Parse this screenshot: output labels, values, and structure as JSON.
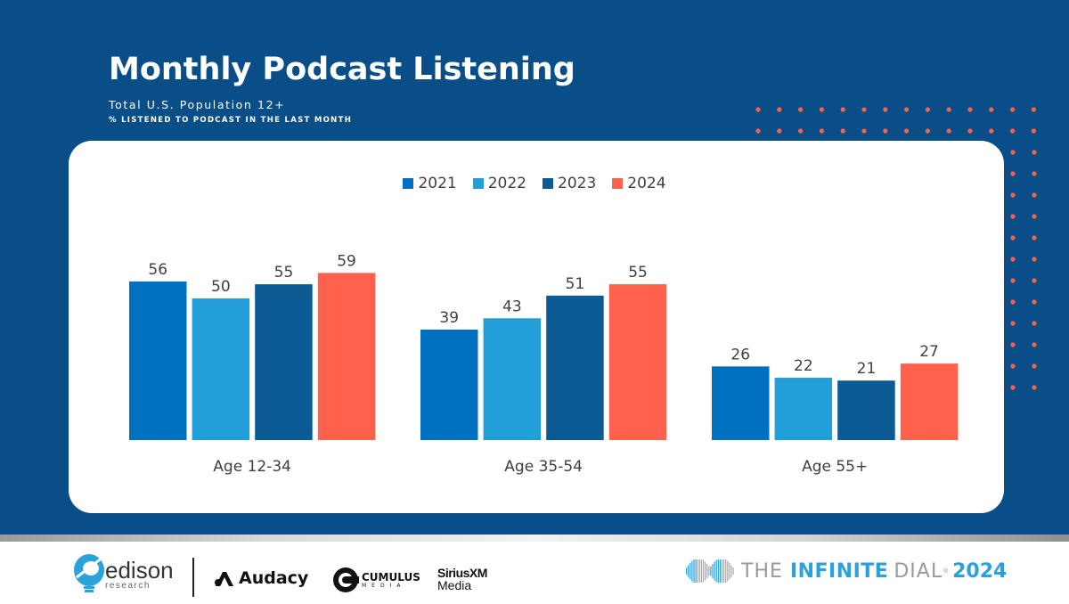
{
  "header": {
    "title": "Monthly Podcast Listening",
    "subtitle": "Total U.S. Population 12+",
    "measure": "% LISTENED TO PODCAST IN THE LAST MONTH"
  },
  "colors": {
    "background": "#0a4e88",
    "accent_dots": "#ff614c",
    "series": [
      "#0070c0",
      "#229fd8",
      "#0b5a94",
      "#ff614c"
    ]
  },
  "chart_data": {
    "type": "bar",
    "title": "Monthly Podcast Listening",
    "subtitle": "Total U.S. Population 12+",
    "ylabel": "% listened to podcast in the last month",
    "xlabel": "",
    "categories": [
      "Age 12-34",
      "Age 35-54",
      "Age 55+"
    ],
    "series": [
      {
        "name": "2021",
        "values": [
          56,
          39,
          26
        ]
      },
      {
        "name": "2022",
        "values": [
          50,
          43,
          22
        ]
      },
      {
        "name": "2023",
        "values": [
          55,
          51,
          21
        ]
      },
      {
        "name": "2024",
        "values": [
          59,
          55,
          27
        ]
      }
    ],
    "ylim": [
      0,
      60
    ],
    "grid": false,
    "legend": "top-center",
    "data_labels": true
  },
  "footer": {
    "edison": {
      "name": "edison",
      "sub": "research"
    },
    "audacy": "Audacy",
    "cumulus": {
      "name": "CUMULUS",
      "sub": "MEDIA"
    },
    "siriusxm": {
      "name": "SiriusXM",
      "sub": "Media"
    },
    "infinite_dial": {
      "the": "THE",
      "infinite": "INFINITE",
      "dial": "DIAL",
      "reg": "®",
      "year": "2024"
    }
  }
}
